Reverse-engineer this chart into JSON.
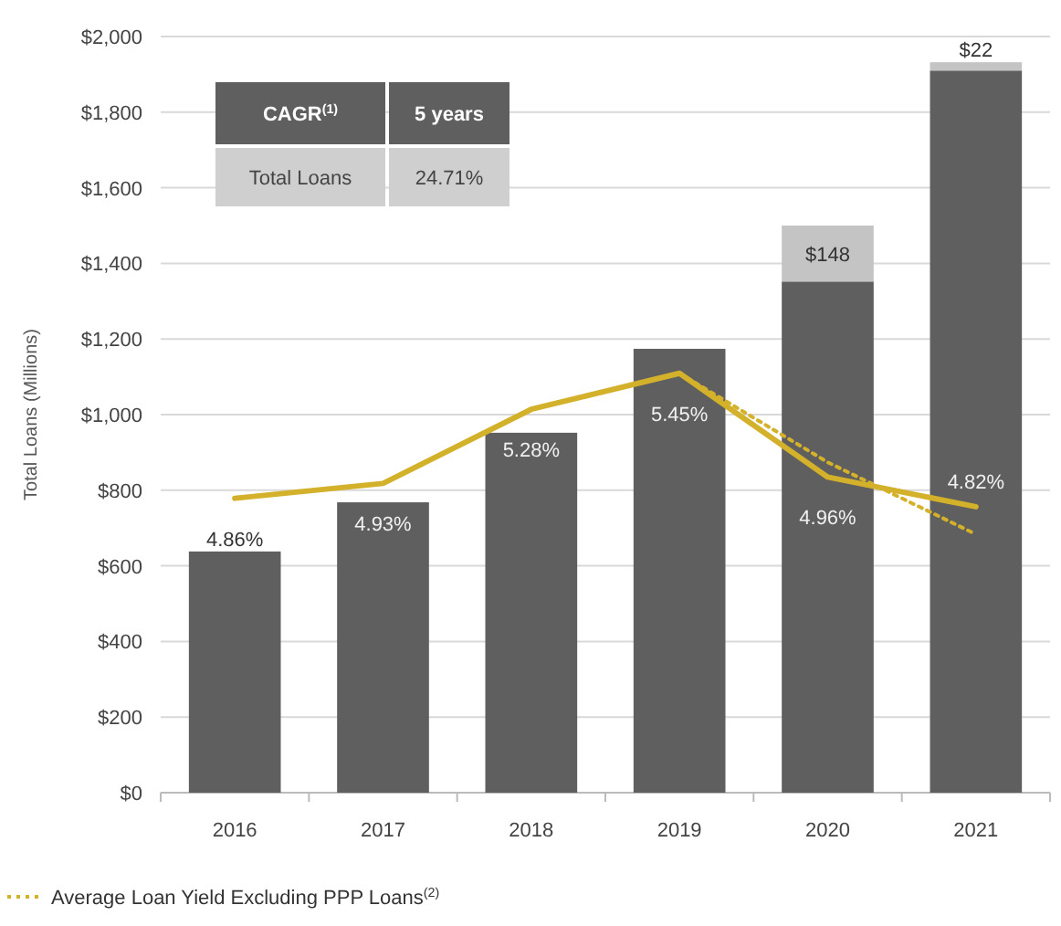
{
  "chart_data": {
    "type": "bar",
    "stacked": true,
    "ylabel": "Total Loans (Millions)",
    "categories": [
      "2016",
      "2017",
      "2018",
      "2019",
      "2020",
      "2021"
    ],
    "ylim": [
      0,
      2000
    ],
    "yticks": [
      {
        "value": 0,
        "label": "$0"
      },
      {
        "value": 200,
        "label": "$200"
      },
      {
        "value": 400,
        "label": "$400"
      },
      {
        "value": 600,
        "label": "$600"
      },
      {
        "value": 800,
        "label": "$800"
      },
      {
        "value": 1000,
        "label": "$1,000"
      },
      {
        "value": 1200,
        "label": "$1,200"
      },
      {
        "value": 1400,
        "label": "$1,400"
      },
      {
        "value": 1600,
        "label": "$1,600"
      },
      {
        "value": 1800,
        "label": "$1,800"
      },
      {
        "value": 2000,
        "label": "$2,000"
      }
    ],
    "y2lim": [
      3.47,
      7.04
    ],
    "grid": "y",
    "legend": "bottom left",
    "series": [
      {
        "color": "#5f5f5f",
        "values": [
          638,
          768,
          952,
          1174,
          1352,
          1910
        ]
      },
      {
        "color": "#c4c4c4",
        "values": [
          null,
          null,
          null,
          null,
          148,
          22
        ],
        "value_labels": [
          null,
          null,
          null,
          null,
          "$148",
          "$22"
        ]
      },
      {
        "type": "line",
        "axis": "y2",
        "color": "#d4b12b",
        "line_style": "solid",
        "values": [
          4.86,
          4.93,
          5.28,
          5.45,
          4.96,
          4.82
        ],
        "value_labels": [
          "4.86%",
          "4.93%",
          "5.28%",
          "5.45%",
          "4.96%",
          "4.82%"
        ]
      },
      {
        "type": "line",
        "axis": "y2",
        "name": "Average Loan Yield Excluding PPP Loans$^{(2)}$",
        "color": "#d4b12b",
        "line_style": "dotted",
        "values": [
          null,
          null,
          null,
          5.45,
          5.03,
          4.69
        ]
      }
    ],
    "annotations": [
      "CAGR$^{(1)}$",
      "5 years",
      "Total Loans",
      "24.71%"
    ]
  }
}
